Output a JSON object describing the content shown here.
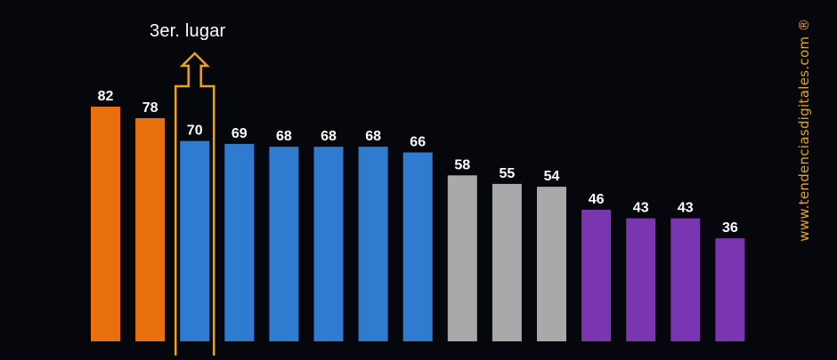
{
  "chart_data": {
    "type": "bar",
    "values": [
      82,
      78,
      70,
      69,
      68,
      68,
      68,
      66,
      58,
      55,
      54,
      46,
      43,
      43,
      36
    ],
    "colors": [
      "#e8700e",
      "#e8700e",
      "#2f7bd0",
      "#2f7bd0",
      "#2f7bd0",
      "#2f7bd0",
      "#2f7bd0",
      "#2f7bd0",
      "#a9a9a9",
      "#a9a9a9",
      "#a9a9a9",
      "#7a35b0",
      "#7a35b0",
      "#7a35b0",
      "#7a35b0"
    ],
    "ylim": [
      0,
      82
    ],
    "grid": false,
    "highlight_index": 2,
    "highlight_color": "#e8a317"
  },
  "annotation": {
    "label": "3er. lugar"
  },
  "watermark": {
    "text": "www.tendenciasdigitales.com ®"
  }
}
